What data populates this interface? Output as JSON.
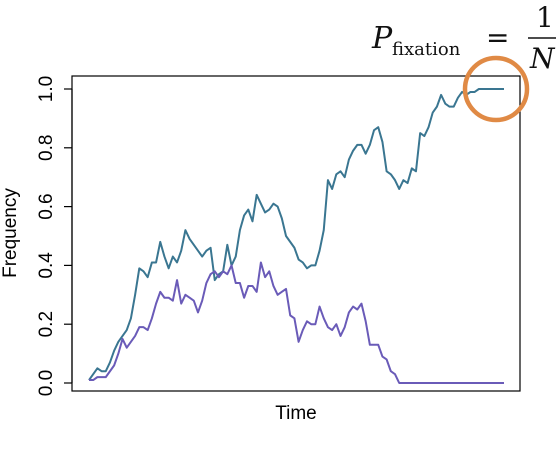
{
  "chart_data": {
    "type": "line",
    "title": "",
    "xlabel": "Time",
    "ylabel": "Frequency",
    "ylim": [
      0,
      1
    ],
    "yticks": [
      "0.0",
      "0.2",
      "0.4",
      "0.6",
      "0.8",
      "1.0"
    ],
    "grid": false,
    "x": [
      1,
      2,
      3,
      4,
      5,
      6,
      7,
      8,
      9,
      10,
      11,
      12,
      13,
      14,
      15,
      16,
      17,
      18,
      19,
      20,
      21,
      22,
      23,
      24,
      25,
      26,
      27,
      28,
      29,
      30,
      31,
      32,
      33,
      34,
      35,
      36,
      37,
      38,
      39,
      40,
      41,
      42,
      43,
      44,
      45,
      46,
      47,
      48,
      49,
      50,
      51,
      52,
      53,
      54,
      55,
      56,
      57,
      58,
      59,
      60,
      61,
      62,
      63,
      64,
      65,
      66,
      67,
      68,
      69,
      70,
      71,
      72,
      73,
      74,
      75,
      76,
      77,
      78,
      79,
      80,
      81,
      82,
      83,
      84,
      85,
      86,
      87,
      88,
      89,
      90,
      91,
      92,
      93,
      94,
      95,
      96,
      97,
      98,
      99,
      100
    ],
    "series": [
      {
        "color": "#3a7691",
        "values": [
          0.01,
          0.03,
          0.05,
          0.04,
          0.04,
          0.07,
          0.11,
          0.14,
          0.16,
          0.18,
          0.22,
          0.3,
          0.39,
          0.38,
          0.36,
          0.41,
          0.41,
          0.48,
          0.43,
          0.39,
          0.43,
          0.41,
          0.45,
          0.52,
          0.49,
          0.47,
          0.45,
          0.43,
          0.45,
          0.46,
          0.35,
          0.37,
          0.38,
          0.47,
          0.4,
          0.43,
          0.52,
          0.57,
          0.59,
          0.55,
          0.64,
          0.61,
          0.58,
          0.59,
          0.61,
          0.6,
          0.56,
          0.5,
          0.48,
          0.46,
          0.42,
          0.41,
          0.39,
          0.4,
          0.4,
          0.45,
          0.52,
          0.69,
          0.66,
          0.71,
          0.72,
          0.7,
          0.76,
          0.79,
          0.81,
          0.81,
          0.78,
          0.81,
          0.86,
          0.87,
          0.82,
          0.72,
          0.71,
          0.69,
          0.66,
          0.69,
          0.68,
          0.73,
          0.72,
          0.85,
          0.84,
          0.87,
          0.92,
          0.94,
          0.98,
          0.95,
          0.94,
          0.94,
          0.97,
          0.99,
          0.98,
          0.99,
          0.99,
          1.0,
          1.0,
          1.0,
          1.0,
          1.0,
          1.0,
          1.0
        ]
      },
      {
        "color": "#6a5bb8",
        "values": [
          0.01,
          0.01,
          0.02,
          0.02,
          0.02,
          0.04,
          0.06,
          0.1,
          0.15,
          0.12,
          0.14,
          0.16,
          0.19,
          0.19,
          0.18,
          0.22,
          0.27,
          0.31,
          0.29,
          0.29,
          0.28,
          0.35,
          0.27,
          0.3,
          0.29,
          0.28,
          0.24,
          0.28,
          0.34,
          0.37,
          0.38,
          0.36,
          0.38,
          0.37,
          0.4,
          0.34,
          0.34,
          0.29,
          0.33,
          0.33,
          0.31,
          0.41,
          0.36,
          0.38,
          0.33,
          0.3,
          0.31,
          0.32,
          0.23,
          0.22,
          0.14,
          0.18,
          0.21,
          0.2,
          0.2,
          0.26,
          0.22,
          0.19,
          0.18,
          0.2,
          0.16,
          0.19,
          0.24,
          0.26,
          0.25,
          0.27,
          0.21,
          0.13,
          0.13,
          0.13,
          0.09,
          0.08,
          0.04,
          0.03,
          0.0,
          0.0,
          0.0,
          0.0,
          0.0,
          0.0,
          0.0,
          0.0,
          0.0,
          0.0,
          0.0,
          0.0,
          0.0,
          0.0,
          0.0,
          0.0,
          0.0,
          0.0,
          0.0,
          0.0,
          0.0,
          0.0,
          0.0,
          0.0,
          0.0,
          0.0
        ]
      }
    ],
    "annotation": {
      "formula_lhs": "P",
      "formula_sub": "fixation",
      "formula_eq": "=",
      "formula_num": "1",
      "formula_den": "N",
      "highlight_color": "#e08a45"
    }
  }
}
